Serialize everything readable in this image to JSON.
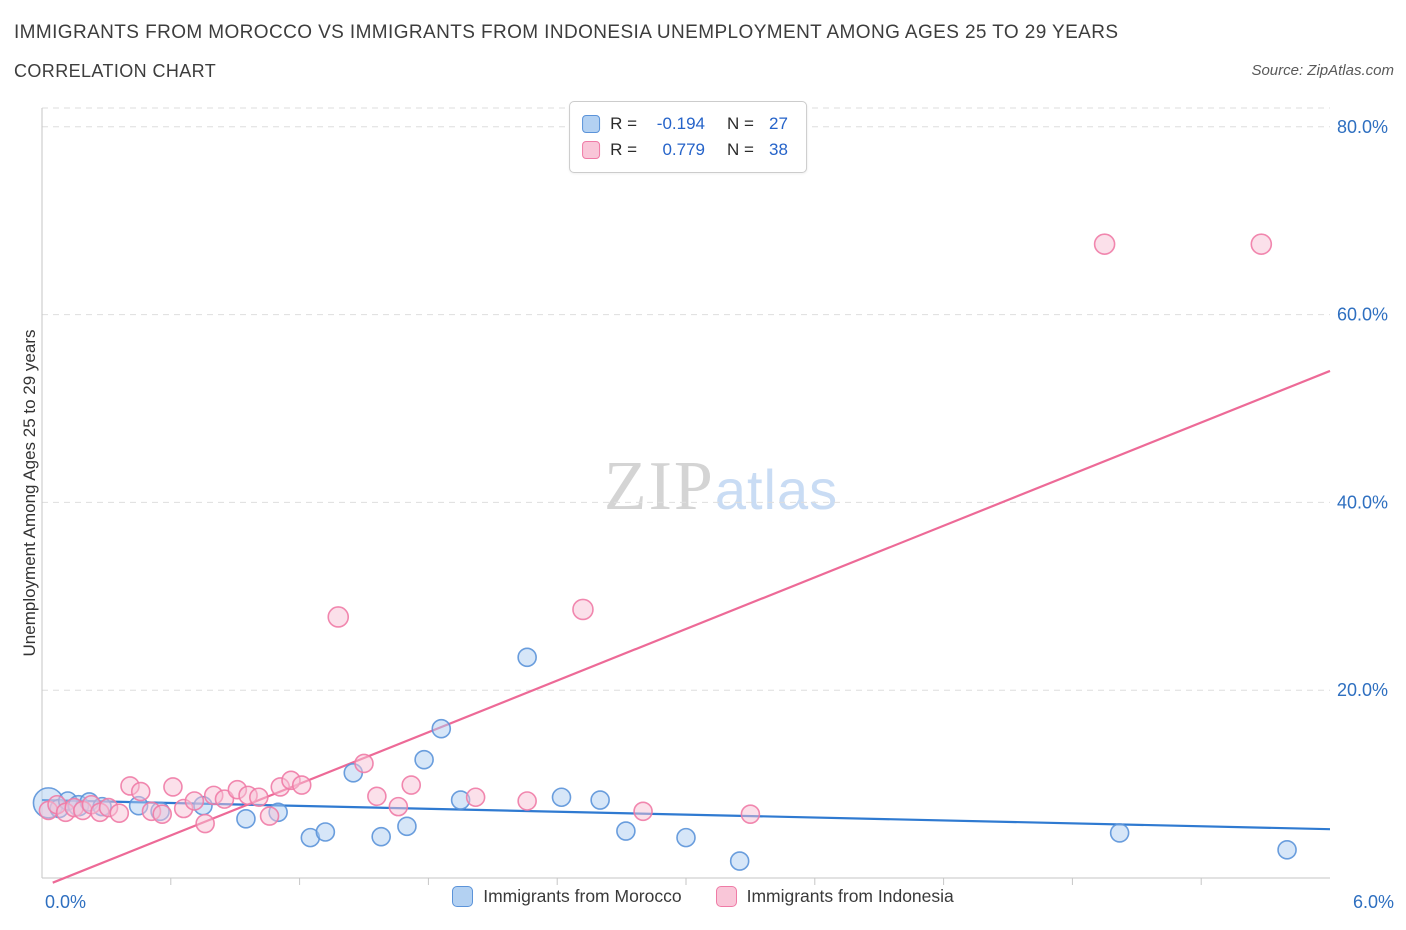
{
  "header": {
    "title": "IMMIGRANTS FROM MOROCCO VS IMMIGRANTS FROM INDONESIA UNEMPLOYMENT AMONG AGES 25 TO 29 YEARS",
    "subtitle": "CORRELATION CHART",
    "source": "Source: ZipAtlas.com"
  },
  "watermark": {
    "part1": "ZIP",
    "part2": "atlas"
  },
  "correlation_legend": {
    "rows": [
      {
        "series": "Immigrants from Morocco",
        "r_label": "R =",
        "r_value": "-0.194",
        "n_label": "N =",
        "n_value": "27"
      },
      {
        "series": "Immigrants from Indonesia",
        "r_label": "R =",
        "r_value": "0.779",
        "n_label": "N =",
        "n_value": "38"
      }
    ]
  },
  "bottom_legend": {
    "items": [
      {
        "label": "Immigrants from Morocco",
        "color_fill": "#b3d1f2",
        "color_stroke": "#5b93d9"
      },
      {
        "label": "Immigrants from Indonesia",
        "color_fill": "#f9c6d8",
        "color_stroke": "#ef7ba6"
      }
    ]
  },
  "chart_data": {
    "type": "scatter",
    "title": "Immigrants from Morocco vs Immigrants from Indonesia Unemployment Among Ages 25 to 29 years",
    "xlabel": "",
    "ylabel": "Unemployment Among Ages 25 to 29 years",
    "x_domain": [
      0,
      6
    ],
    "y_domain": [
      0,
      82
    ],
    "x_tick_labels": [
      {
        "value": 0,
        "label": "0.0%"
      },
      {
        "value": 6,
        "label": "6.0%"
      }
    ],
    "y_tick_labels": [
      {
        "value": 20,
        "label": "20.0%"
      },
      {
        "value": 40,
        "label": "40.0%"
      },
      {
        "value": 60,
        "label": "60.0%"
      },
      {
        "value": 80,
        "label": "80.0%"
      }
    ],
    "x_minor_tick_step": 0.6,
    "grid": "horizontal-dashed",
    "legend_position": "bottom-center",
    "accent_color": "#2e6fc0",
    "series": [
      {
        "id": "morocco",
        "name": "Immigrants from Morocco",
        "r": -0.194,
        "n": 27,
        "color_stroke": "#5b93d9",
        "color_fill": "#aecdf2",
        "trend": {
          "x1": 0,
          "y1": 8.3,
          "x2": 6,
          "y2": 5.2,
          "color": "#2f7ad1"
        },
        "points": [
          [
            0.03,
            8.0,
            15
          ],
          [
            0.08,
            7.4,
            9
          ],
          [
            0.12,
            8.2,
            9
          ],
          [
            0.17,
            7.7,
            10
          ],
          [
            0.22,
            8.1,
            9
          ],
          [
            0.28,
            7.6,
            9
          ],
          [
            0.45,
            7.7,
            9
          ],
          [
            0.55,
            7.1,
            9
          ],
          [
            0.75,
            7.7,
            9
          ],
          [
            0.95,
            6.3,
            9
          ],
          [
            1.1,
            7.0,
            9
          ],
          [
            1.25,
            4.3,
            9
          ],
          [
            1.32,
            4.9,
            9
          ],
          [
            1.45,
            11.2,
            9
          ],
          [
            1.58,
            4.4,
            9
          ],
          [
            1.7,
            5.5,
            9
          ],
          [
            1.78,
            12.6,
            9
          ],
          [
            1.86,
            15.9,
            9
          ],
          [
            1.95,
            8.3,
            9
          ],
          [
            2.26,
            23.5,
            9
          ],
          [
            2.42,
            8.6,
            9
          ],
          [
            2.6,
            8.3,
            9
          ],
          [
            2.72,
            5.0,
            9
          ],
          [
            3.0,
            4.3,
            9
          ],
          [
            3.25,
            1.8,
            9
          ],
          [
            5.02,
            4.8,
            9
          ],
          [
            5.8,
            3.0,
            9
          ]
        ]
      },
      {
        "id": "indonesia",
        "name": "Immigrants from Indonesia",
        "r": 0.779,
        "n": 38,
        "color_stroke": "#ef7ba6",
        "color_fill": "#f8c2d6",
        "trend": {
          "x1": 0.05,
          "y1": -0.5,
          "x2": 6,
          "y2": 54,
          "color": "#ed6a97"
        },
        "points": [
          [
            0.03,
            7.2,
            9
          ],
          [
            0.07,
            7.8,
            9
          ],
          [
            0.11,
            7.0,
            9
          ],
          [
            0.15,
            7.5,
            9
          ],
          [
            0.19,
            7.2,
            9
          ],
          [
            0.23,
            7.8,
            9
          ],
          [
            0.27,
            7.0,
            9
          ],
          [
            0.31,
            7.5,
            9
          ],
          [
            0.36,
            6.9,
            9
          ],
          [
            0.41,
            9.8,
            9
          ],
          [
            0.46,
            9.2,
            9
          ],
          [
            0.51,
            7.1,
            9
          ],
          [
            0.56,
            6.8,
            9
          ],
          [
            0.61,
            9.7,
            9
          ],
          [
            0.66,
            7.4,
            9
          ],
          [
            0.71,
            8.2,
            9
          ],
          [
            0.76,
            5.8,
            9
          ],
          [
            0.8,
            8.8,
            9
          ],
          [
            0.85,
            8.4,
            9
          ],
          [
            0.91,
            9.4,
            9
          ],
          [
            0.96,
            8.8,
            9
          ],
          [
            1.01,
            8.6,
            9
          ],
          [
            1.06,
            6.6,
            9
          ],
          [
            1.11,
            9.7,
            9
          ],
          [
            1.16,
            10.4,
            9
          ],
          [
            1.21,
            9.9,
            9
          ],
          [
            1.38,
            27.8,
            10
          ],
          [
            1.5,
            12.2,
            9
          ],
          [
            1.56,
            8.7,
            9
          ],
          [
            1.66,
            7.6,
            9
          ],
          [
            1.72,
            9.9,
            9
          ],
          [
            2.02,
            8.6,
            9
          ],
          [
            2.26,
            8.2,
            9
          ],
          [
            2.52,
            28.6,
            10
          ],
          [
            2.8,
            7.1,
            9
          ],
          [
            3.3,
            6.8,
            9
          ],
          [
            4.95,
            67.5,
            10
          ],
          [
            5.68,
            67.5,
            10
          ]
        ]
      }
    ]
  }
}
